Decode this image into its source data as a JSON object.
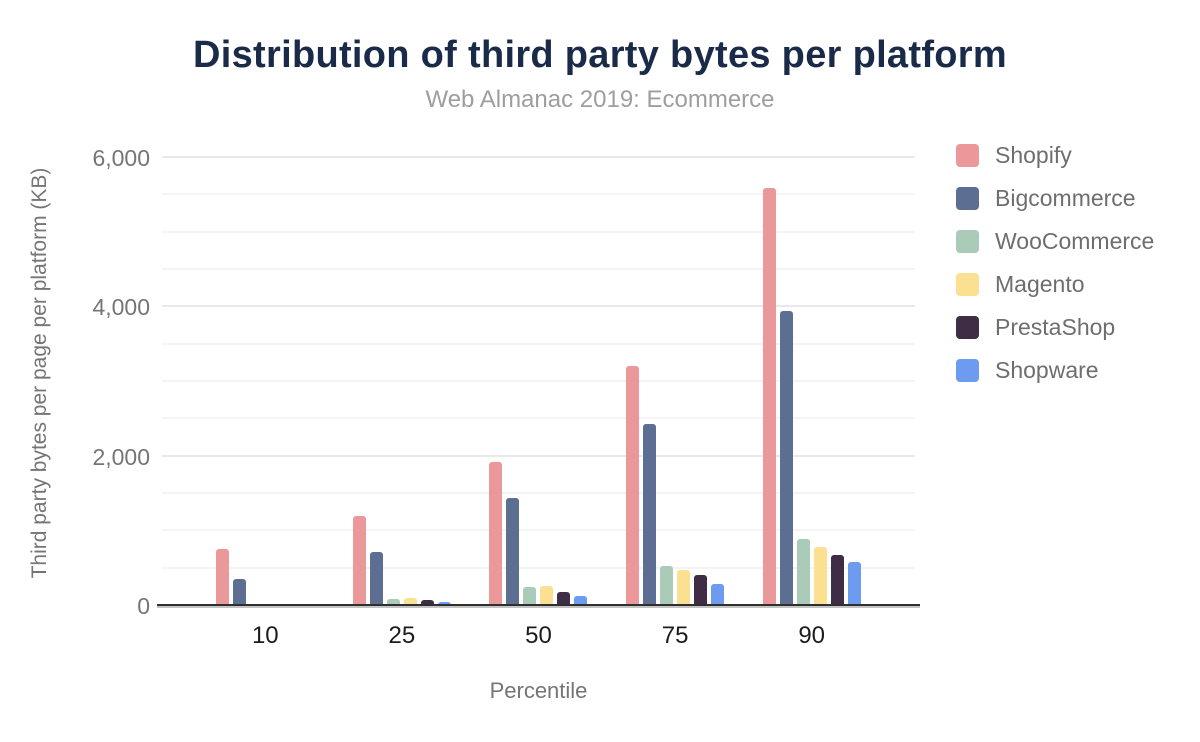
{
  "chart_data": {
    "type": "bar",
    "title": "Distribution of third party bytes per platform",
    "subtitle": "Web Almanac 2019: Ecommerce",
    "xlabel": "Percentile",
    "ylabel": "Third party bytes per page per platform (KB)",
    "categories": [
      "10",
      "25",
      "50",
      "75",
      "90"
    ],
    "series": [
      {
        "name": "Shopify",
        "color": "#ea9899",
        "values": [
          760,
          1210,
          1930,
          3220,
          5600
        ]
      },
      {
        "name": "Bigcommerce",
        "color": "#5c6e91",
        "values": [
          360,
          730,
          1450,
          2440,
          3950
        ]
      },
      {
        "name": "WooCommerce",
        "color": "#a9cbb7",
        "values": [
          30,
          100,
          255,
          530,
          900
        ]
      },
      {
        "name": "Magento",
        "color": "#fce091",
        "values": [
          25,
          110,
          270,
          480,
          790
        ]
      },
      {
        "name": "PrestaShop",
        "color": "#3f2d45",
        "values": [
          10,
          75,
          190,
          410,
          680
        ]
      },
      {
        "name": "Shopware",
        "color": "#6c9bf0",
        "values": [
          10,
          50,
          140,
          300,
          590
        ]
      }
    ],
    "ylim": [
      0,
      6240
    ],
    "yticks": [
      0,
      2000,
      4000,
      6000
    ],
    "ytick_labels": [
      "0",
      "2,000",
      "4,000",
      "6,000"
    ],
    "minor_grid_interval": 500,
    "grid": true,
    "legend_position": "right",
    "colors": {
      "title": "#1a2b49",
      "subtitle": "#9e9e9e",
      "axis_text": "#757575",
      "x_tick_text": "#1c1c1c"
    }
  }
}
